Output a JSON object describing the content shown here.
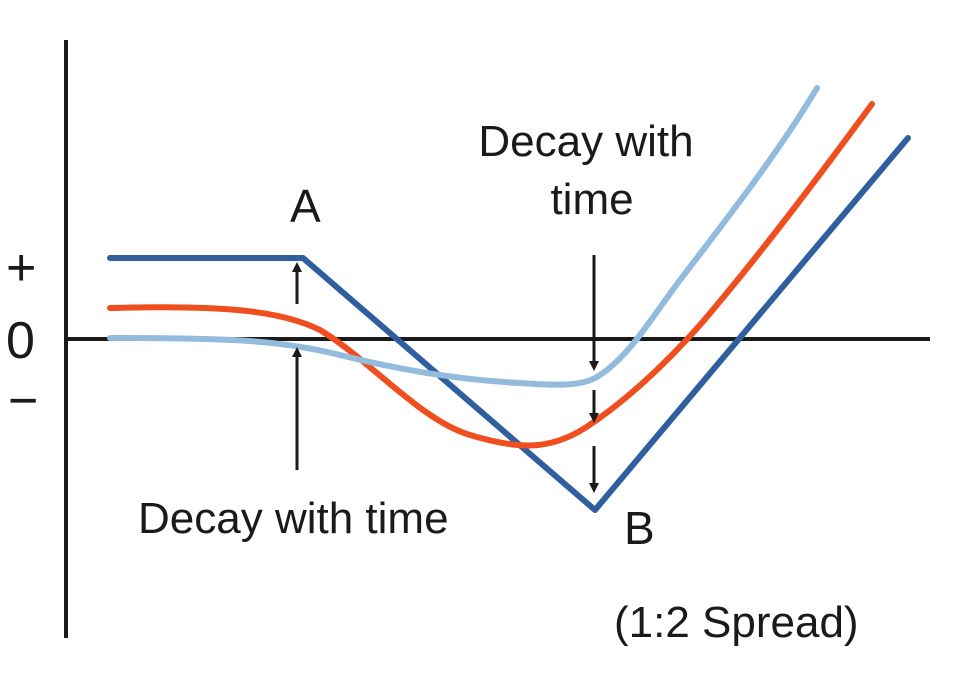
{
  "diagram": {
    "axis_labels": {
      "plus": "+",
      "zero": "0",
      "minus": "−"
    },
    "point_a": "A",
    "point_b": "B",
    "annotation_top_line1": "Decay with",
    "annotation_top_line2": "time",
    "annotation_bottom": "Decay with time",
    "footnote": "(1:2 Spread)",
    "curves": [
      {
        "id": "expiry",
        "color": "#2f5f9e"
      },
      {
        "id": "intermediate",
        "color": "#ef4e1f"
      },
      {
        "id": "early",
        "color": "#93bbdd"
      }
    ],
    "axis_color": "#1a1a1a"
  }
}
